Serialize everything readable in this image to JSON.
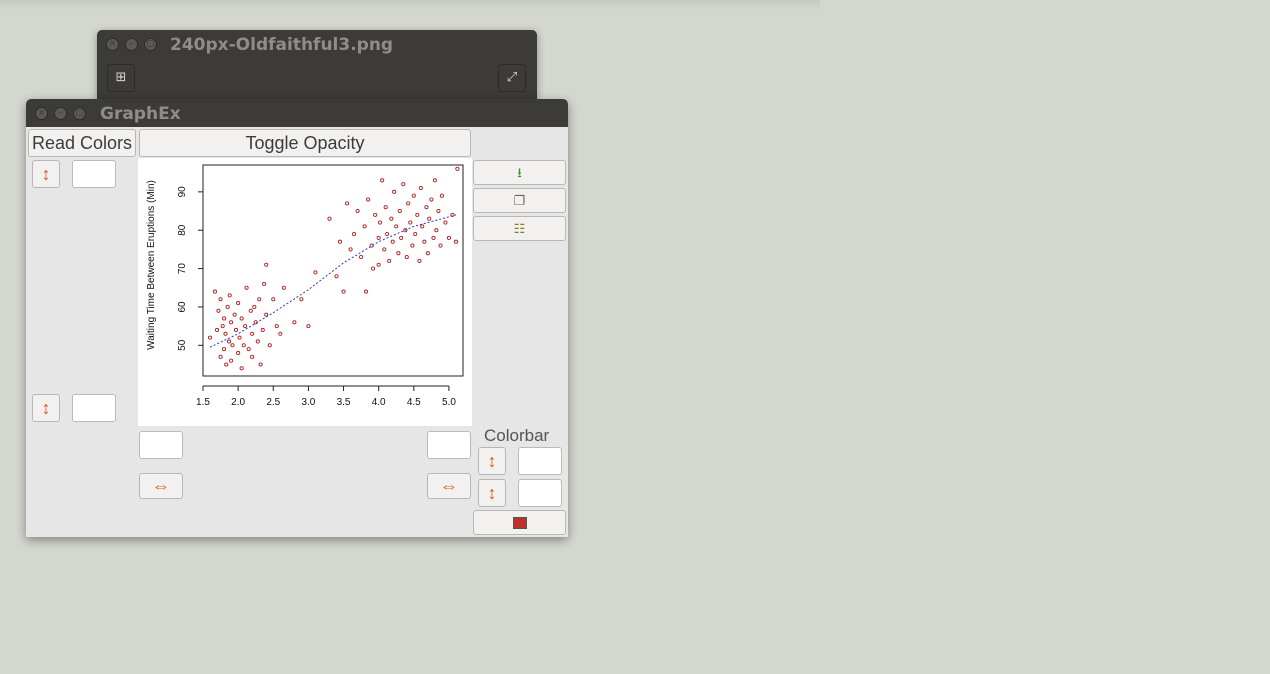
{
  "back_window": {
    "title": "240px-Oldfaithful3.png",
    "add_icon": "plus-square-icon",
    "fullscreen_icon": "expand-icon"
  },
  "window": {
    "title": "GraphEx",
    "read_colors_label": "Read Colors",
    "toggle_opacity_label": "Toggle Opacity",
    "colorbar_label": "Colorbar",
    "y_max_value": "",
    "y_min_value": "",
    "x_min_value": "",
    "x_max_value": "",
    "colorbar_max_value": "",
    "colorbar_min_value": "",
    "side_icons": [
      "save-icon",
      "copy-icon",
      "paste-icon",
      "color-swatch-icon"
    ]
  },
  "chart_data": {
    "type": "scatter",
    "title": "",
    "xlabel": "",
    "ylabel": "Waiting Time Between Eruptions (Min)",
    "xlim": [
      1.5,
      5.2
    ],
    "ylim": [
      42,
      97
    ],
    "xticks": [
      "1.5",
      "2.0",
      "2.5",
      "3.0",
      "3.5",
      "4.0",
      "4.5",
      "5.0"
    ],
    "xtick_values": [
      1.5,
      2.0,
      2.5,
      3.0,
      3.5,
      4.0,
      4.5,
      5.0
    ],
    "yticks": [
      "50",
      "60",
      "70",
      "80",
      "90"
    ],
    "ytick_values": [
      50,
      60,
      70,
      80,
      90
    ],
    "point_color": "#b22222",
    "trend_color": "#3333cc",
    "series": [
      {
        "points": [
          [
            1.6,
            52
          ],
          [
            1.67,
            64
          ],
          [
            1.7,
            54
          ],
          [
            1.72,
            59
          ],
          [
            1.75,
            47
          ],
          [
            1.75,
            62
          ],
          [
            1.78,
            55
          ],
          [
            1.8,
            49
          ],
          [
            1.8,
            57
          ],
          [
            1.82,
            53
          ],
          [
            1.83,
            45
          ],
          [
            1.85,
            60
          ],
          [
            1.87,
            51
          ],
          [
            1.88,
            63
          ],
          [
            1.9,
            56
          ],
          [
            1.9,
            46
          ],
          [
            1.92,
            50
          ],
          [
            1.95,
            58
          ],
          [
            1.97,
            54
          ],
          [
            2.0,
            48
          ],
          [
            2.0,
            61
          ],
          [
            2.02,
            52
          ],
          [
            2.05,
            44
          ],
          [
            2.05,
            57
          ],
          [
            2.08,
            50
          ],
          [
            2.1,
            55
          ],
          [
            2.12,
            65
          ],
          [
            2.15,
            49
          ],
          [
            2.18,
            59
          ],
          [
            2.2,
            53
          ],
          [
            2.2,
            47
          ],
          [
            2.23,
            60
          ],
          [
            2.25,
            56
          ],
          [
            2.28,
            51
          ],
          [
            2.3,
            62
          ],
          [
            2.32,
            45
          ],
          [
            2.35,
            54
          ],
          [
            2.37,
            66
          ],
          [
            2.4,
            58
          ],
          [
            2.4,
            71
          ],
          [
            2.45,
            50
          ],
          [
            2.5,
            62
          ],
          [
            2.55,
            55
          ],
          [
            2.6,
            53
          ],
          [
            2.65,
            65
          ],
          [
            2.8,
            56
          ],
          [
            2.9,
            62
          ],
          [
            3.0,
            55
          ],
          [
            3.1,
            69
          ],
          [
            3.3,
            83
          ],
          [
            3.4,
            68
          ],
          [
            3.45,
            77
          ],
          [
            3.5,
            64
          ],
          [
            3.55,
            87
          ],
          [
            3.6,
            75
          ],
          [
            3.65,
            79
          ],
          [
            3.7,
            85
          ],
          [
            3.75,
            73
          ],
          [
            3.8,
            81
          ],
          [
            3.82,
            64
          ],
          [
            3.85,
            88
          ],
          [
            3.9,
            76
          ],
          [
            3.92,
            70
          ],
          [
            3.95,
            84
          ],
          [
            4.0,
            78
          ],
          [
            4.0,
            71
          ],
          [
            4.02,
            82
          ],
          [
            4.05,
            93
          ],
          [
            4.08,
            75
          ],
          [
            4.1,
            86
          ],
          [
            4.12,
            79
          ],
          [
            4.15,
            72
          ],
          [
            4.18,
            83
          ],
          [
            4.2,
            77
          ],
          [
            4.22,
            90
          ],
          [
            4.25,
            81
          ],
          [
            4.28,
            74
          ],
          [
            4.3,
            85
          ],
          [
            4.32,
            78
          ],
          [
            4.35,
            92
          ],
          [
            4.38,
            80
          ],
          [
            4.4,
            73
          ],
          [
            4.42,
            87
          ],
          [
            4.45,
            82
          ],
          [
            4.48,
            76
          ],
          [
            4.5,
            89
          ],
          [
            4.52,
            79
          ],
          [
            4.55,
            84
          ],
          [
            4.58,
            72
          ],
          [
            4.6,
            91
          ],
          [
            4.62,
            81
          ],
          [
            4.65,
            77
          ],
          [
            4.68,
            86
          ],
          [
            4.7,
            74
          ],
          [
            4.72,
            83
          ],
          [
            4.75,
            88
          ],
          [
            4.78,
            78
          ],
          [
            4.8,
            93
          ],
          [
            4.82,
            80
          ],
          [
            4.85,
            85
          ],
          [
            4.88,
            76
          ],
          [
            4.9,
            89
          ],
          [
            4.95,
            82
          ],
          [
            5.0,
            78
          ],
          [
            5.05,
            84
          ],
          [
            5.1,
            77
          ],
          [
            5.12,
            96
          ]
        ]
      }
    ],
    "trend": [
      [
        1.6,
        49.5
      ],
      [
        2.0,
        53
      ],
      [
        2.5,
        58.5
      ],
      [
        3.0,
        64.5
      ],
      [
        3.5,
        71.5
      ],
      [
        4.0,
        77
      ],
      [
        4.5,
        81
      ],
      [
        5.1,
        84
      ]
    ]
  }
}
